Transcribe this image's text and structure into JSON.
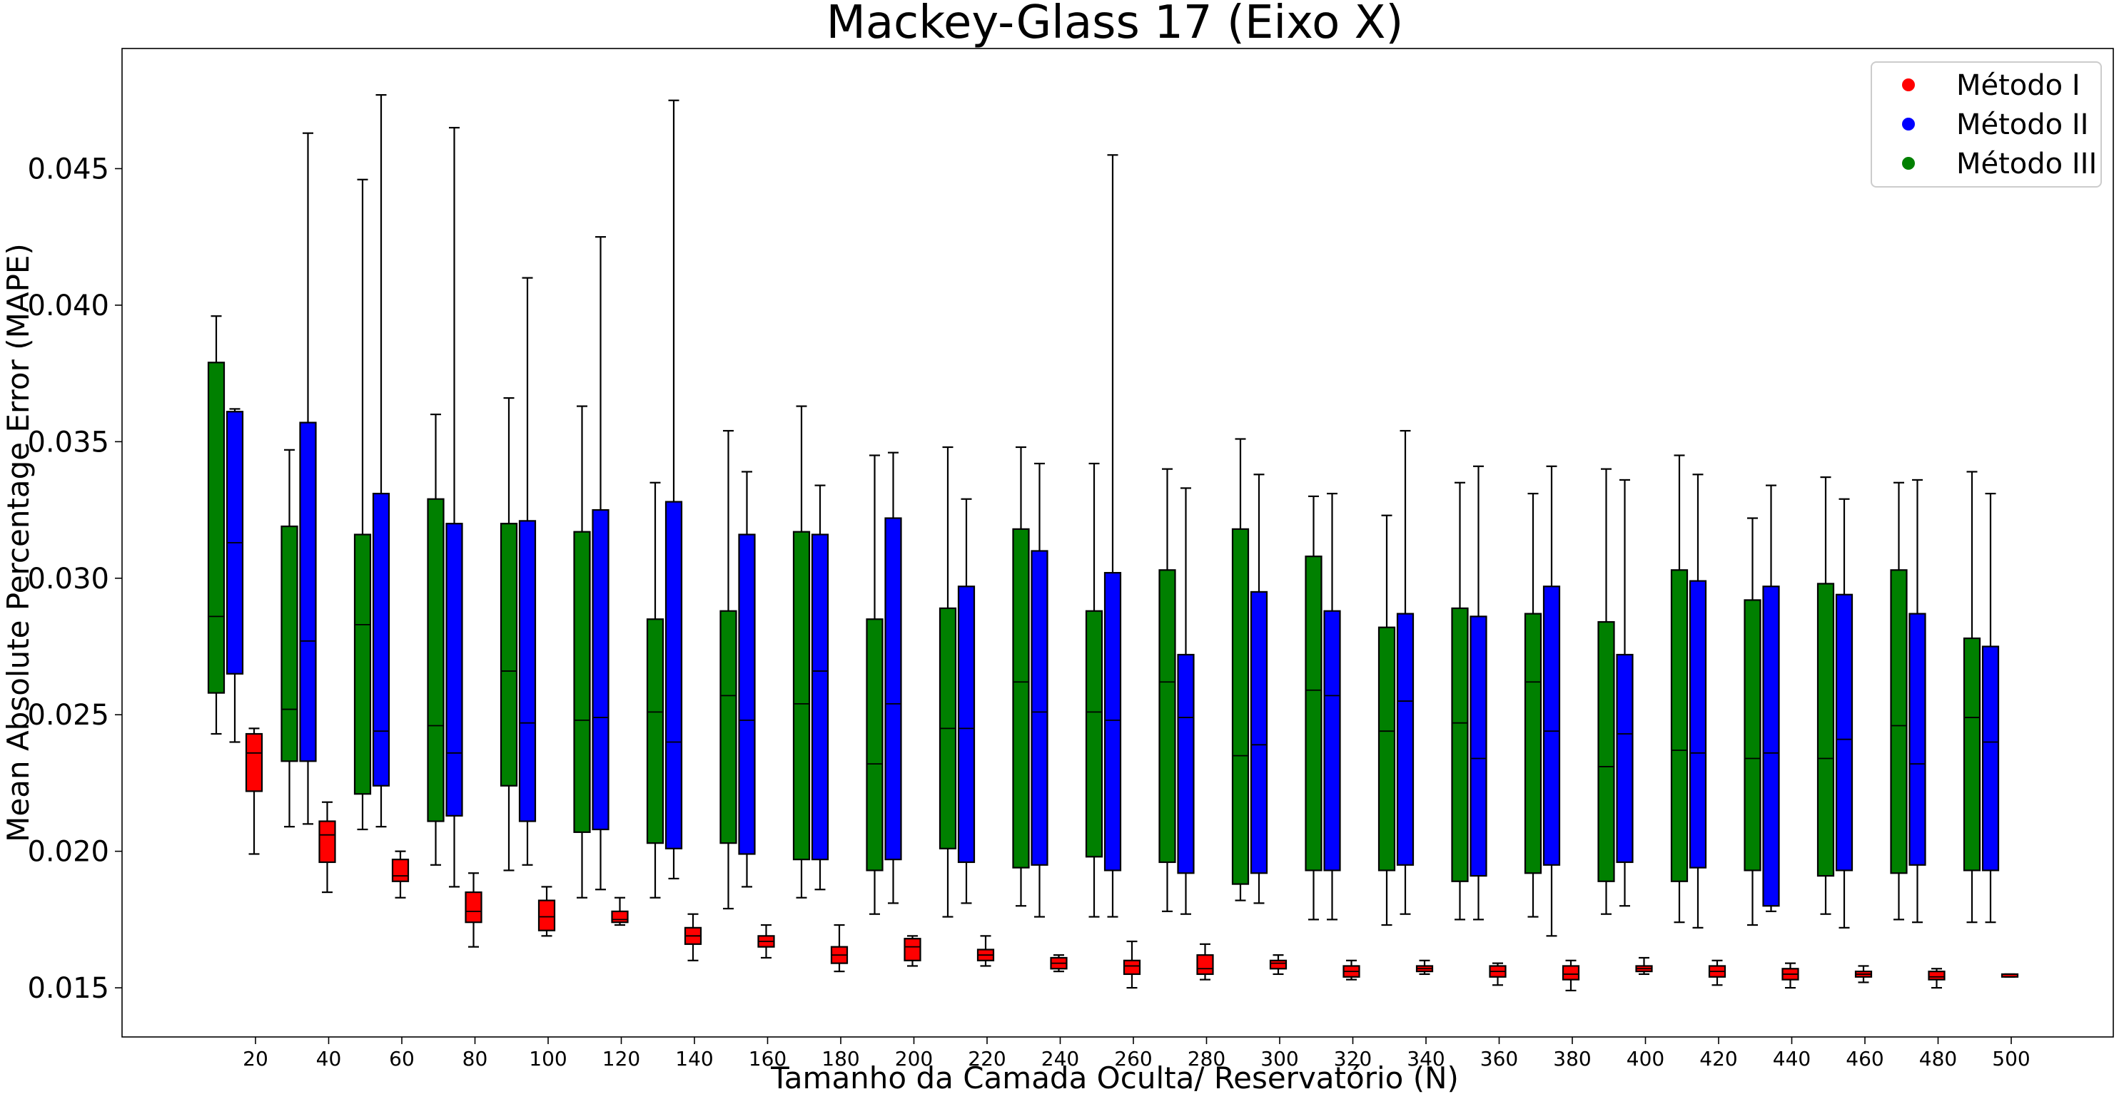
{
  "chart_data": {
    "type": "boxplot",
    "title": "Mackey-Glass 17 (Eixo X)",
    "xlabel": "Tamanho da Camada Oculta/ Reservatório (N)",
    "ylabel": "Mean Absolute Percentage Error (MAPE)",
    "ylim": [
      0.0132,
      0.0494
    ],
    "yticks": [
      0.015,
      0.02,
      0.025,
      0.03,
      0.035,
      0.04,
      0.045
    ],
    "ytick_labels": [
      "0.015",
      "0.020",
      "0.025",
      "0.030",
      "0.035",
      "0.040",
      "0.045"
    ],
    "categories": [
      "20",
      "40",
      "60",
      "80",
      "100",
      "120",
      "140",
      "160",
      "180",
      "200",
      "220",
      "240",
      "260",
      "280",
      "300",
      "320",
      "340",
      "360",
      "380",
      "400",
      "420",
      "440",
      "460",
      "480",
      "500"
    ],
    "legend": {
      "position": "top-right",
      "entries": [
        "Método I",
        "Método II",
        "Método III"
      ]
    },
    "series": [
      {
        "name": "Método III",
        "color": "#008000",
        "boxes": [
          [
            0.0243,
            0.0258,
            0.0286,
            0.0379,
            0.0396
          ],
          [
            0.0209,
            0.0233,
            0.0252,
            0.0319,
            0.0347
          ],
          [
            0.0208,
            0.0221,
            0.0283,
            0.0316,
            0.0446
          ],
          [
            0.0195,
            0.0211,
            0.0246,
            0.0329,
            0.036
          ],
          [
            0.0193,
            0.0224,
            0.0266,
            0.032,
            0.0366
          ],
          [
            0.0183,
            0.0207,
            0.0248,
            0.0317,
            0.0363
          ],
          [
            0.0183,
            0.0203,
            0.0251,
            0.0285,
            0.0335
          ],
          [
            0.0179,
            0.0203,
            0.0257,
            0.0288,
            0.0354
          ],
          [
            0.0183,
            0.0197,
            0.0254,
            0.0317,
            0.0363
          ],
          [
            0.0177,
            0.0193,
            0.0232,
            0.0285,
            0.0345
          ],
          [
            0.0176,
            0.0201,
            0.0245,
            0.0289,
            0.0348
          ],
          [
            0.018,
            0.0194,
            0.0262,
            0.0318,
            0.0348
          ],
          [
            0.0176,
            0.0198,
            0.0251,
            0.0288,
            0.0342
          ],
          [
            0.0178,
            0.0196,
            0.0262,
            0.0303,
            0.034
          ],
          [
            0.0182,
            0.0188,
            0.0235,
            0.0318,
            0.0351
          ],
          [
            0.0175,
            0.0193,
            0.0259,
            0.0308,
            0.033
          ],
          [
            0.0173,
            0.0193,
            0.0244,
            0.0282,
            0.0323
          ],
          [
            0.0175,
            0.0189,
            0.0247,
            0.0289,
            0.0335
          ],
          [
            0.0176,
            0.0192,
            0.0262,
            0.0287,
            0.0331
          ],
          [
            0.0177,
            0.0189,
            0.0231,
            0.0284,
            0.034
          ],
          [
            0.0174,
            0.0189,
            0.0237,
            0.0303,
            0.0345
          ],
          [
            0.0173,
            0.0193,
            0.0234,
            0.0292,
            0.0322
          ],
          [
            0.0177,
            0.0191,
            0.0234,
            0.0298,
            0.0337
          ],
          [
            0.0175,
            0.0192,
            0.0246,
            0.0303,
            0.0335
          ],
          [
            0.0174,
            0.0193,
            0.0249,
            0.0278,
            0.0339
          ]
        ]
      },
      {
        "name": "Método II",
        "color": "#0000ff",
        "boxes": [
          [
            0.024,
            0.0265,
            0.0313,
            0.0361,
            0.0362
          ],
          [
            0.021,
            0.0233,
            0.0277,
            0.0357,
            0.0463
          ],
          [
            0.0209,
            0.0224,
            0.0244,
            0.0331,
            0.0477
          ],
          [
            0.0187,
            0.0213,
            0.0236,
            0.032,
            0.0465
          ],
          [
            0.0195,
            0.0211,
            0.0247,
            0.0321,
            0.041
          ],
          [
            0.0186,
            0.0208,
            0.0249,
            0.0325,
            0.0425
          ],
          [
            0.019,
            0.0201,
            0.024,
            0.0328,
            0.0475
          ],
          [
            0.0187,
            0.0199,
            0.0248,
            0.0316,
            0.0339
          ],
          [
            0.0186,
            0.0197,
            0.0266,
            0.0316,
            0.0334
          ],
          [
            0.0181,
            0.0197,
            0.0254,
            0.0322,
            0.0346
          ],
          [
            0.0181,
            0.0196,
            0.0245,
            0.0297,
            0.0329
          ],
          [
            0.0176,
            0.0195,
            0.0251,
            0.031,
            0.0342
          ],
          [
            0.0176,
            0.0193,
            0.0248,
            0.0302,
            0.0455
          ],
          [
            0.0177,
            0.0192,
            0.0249,
            0.0272,
            0.0333
          ],
          [
            0.0181,
            0.0192,
            0.0239,
            0.0295,
            0.0338
          ],
          [
            0.0175,
            0.0193,
            0.0257,
            0.0288,
            0.0331
          ],
          [
            0.0177,
            0.0195,
            0.0255,
            0.0287,
            0.0354
          ],
          [
            0.0175,
            0.0191,
            0.0234,
            0.0286,
            0.0341
          ],
          [
            0.0169,
            0.0195,
            0.0244,
            0.0297,
            0.0341
          ],
          [
            0.018,
            0.0196,
            0.0243,
            0.0272,
            0.0336
          ],
          [
            0.0172,
            0.0194,
            0.0236,
            0.0299,
            0.0338
          ],
          [
            0.0178,
            0.018,
            0.0236,
            0.0297,
            0.0334
          ],
          [
            0.0172,
            0.0193,
            0.0241,
            0.0294,
            0.0329
          ],
          [
            0.0174,
            0.0195,
            0.0232,
            0.0287,
            0.0336
          ],
          [
            0.0174,
            0.0193,
            0.024,
            0.0275,
            0.0331
          ]
        ]
      },
      {
        "name": "Método I",
        "color": "#ff0000",
        "boxes": [
          [
            0.0199,
            0.0222,
            0.0236,
            0.0243,
            0.0245
          ],
          [
            0.0185,
            0.0196,
            0.0206,
            0.0211,
            0.0218
          ],
          [
            0.0183,
            0.0189,
            0.0191,
            0.0197,
            0.02
          ],
          [
            0.0165,
            0.0174,
            0.0178,
            0.0185,
            0.0192
          ],
          [
            0.0169,
            0.0171,
            0.0176,
            0.0182,
            0.0187
          ],
          [
            0.0173,
            0.0174,
            0.0175,
            0.0178,
            0.0183
          ],
          [
            0.016,
            0.0166,
            0.0169,
            0.0172,
            0.0177
          ],
          [
            0.0161,
            0.0165,
            0.0167,
            0.0169,
            0.0173
          ],
          [
            0.0156,
            0.0159,
            0.0162,
            0.0165,
            0.0173
          ],
          [
            0.0158,
            0.016,
            0.0165,
            0.0168,
            0.0169
          ],
          [
            0.0158,
            0.016,
            0.0162,
            0.0164,
            0.0169
          ],
          [
            0.0156,
            0.0157,
            0.0159,
            0.0161,
            0.0162
          ],
          [
            0.015,
            0.0155,
            0.0158,
            0.016,
            0.0167
          ],
          [
            0.0153,
            0.0155,
            0.0157,
            0.0162,
            0.0166
          ],
          [
            0.0155,
            0.0157,
            0.0159,
            0.016,
            0.0162
          ],
          [
            0.0153,
            0.0154,
            0.0156,
            0.0158,
            0.016
          ],
          [
            0.0155,
            0.0156,
            0.0157,
            0.0158,
            0.016
          ],
          [
            0.0151,
            0.0154,
            0.0156,
            0.0158,
            0.0159
          ],
          [
            0.0149,
            0.0153,
            0.0155,
            0.0158,
            0.016
          ],
          [
            0.0155,
            0.0156,
            0.0157,
            0.0158,
            0.0161
          ],
          [
            0.0151,
            0.0154,
            0.0156,
            0.0158,
            0.016
          ],
          [
            0.015,
            0.0153,
            0.0155,
            0.0157,
            0.0159
          ],
          [
            0.0152,
            0.0154,
            0.0155,
            0.0156,
            0.0158
          ],
          [
            0.015,
            0.0153,
            0.0154,
            0.0156,
            0.0157
          ],
          [
            0.0154,
            0.0154,
            0.0155,
            0.0155,
            0.0155
          ]
        ]
      }
    ]
  }
}
